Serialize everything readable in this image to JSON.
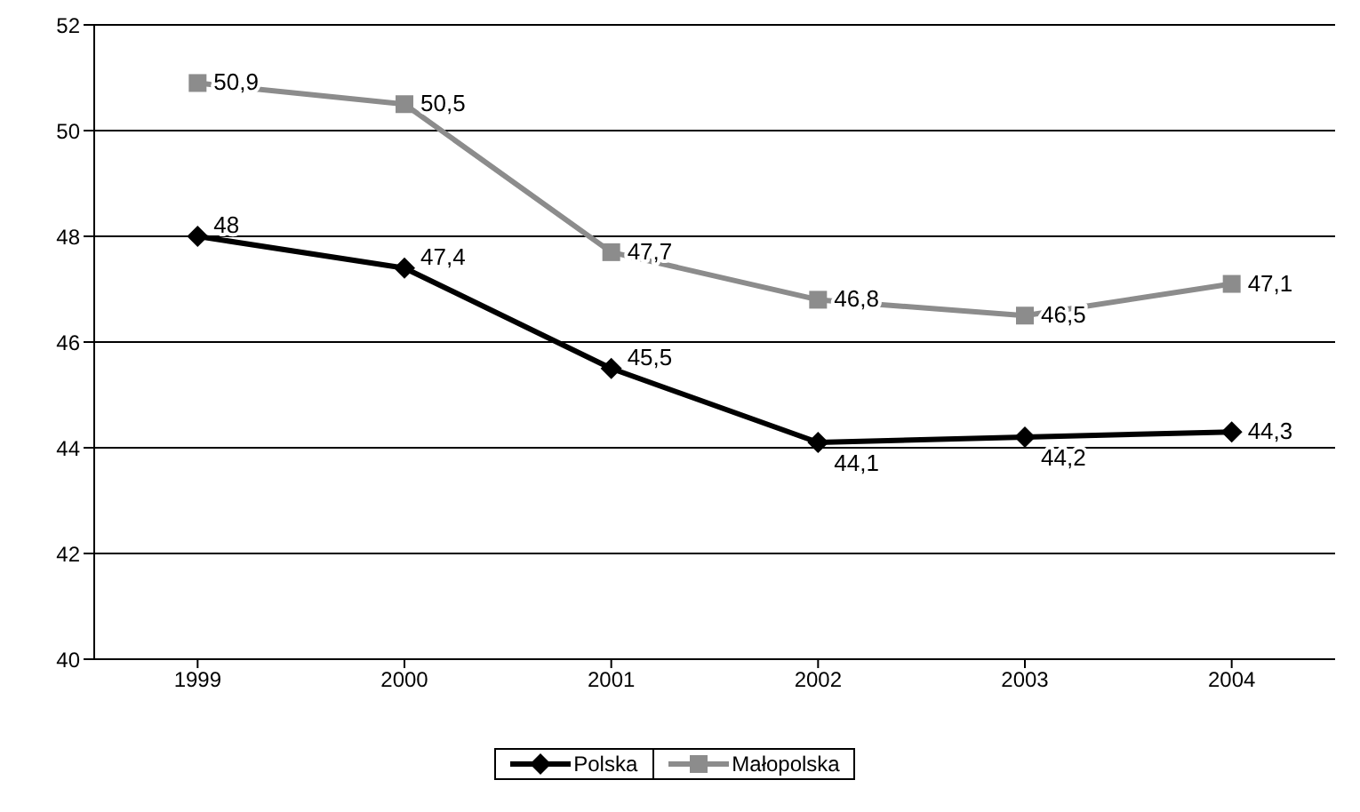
{
  "chart_data": {
    "type": "line",
    "categories": [
      "1999",
      "2000",
      "2001",
      "2002",
      "2003",
      "2004"
    ],
    "series": [
      {
        "name": "Polska",
        "color": "#000000",
        "marker": "diamond",
        "values": [
          48,
          47.4,
          45.5,
          44.1,
          44.2,
          44.3
        ],
        "value_labels": [
          "48",
          "47,4",
          "45,5",
          "44,1",
          "44,2",
          "44,3"
        ]
      },
      {
        "name": "Małopolska",
        "color": "#8c8c8c",
        "marker": "square",
        "values": [
          50.9,
          50.5,
          47.7,
          46.8,
          46.5,
          47.1
        ],
        "value_labels": [
          "50,9",
          "50,5",
          "47,7",
          "46,8",
          "46,5",
          "47,1"
        ]
      }
    ],
    "ylim": [
      40,
      52
    ],
    "yticks": [
      40,
      42,
      44,
      46,
      48,
      50,
      52
    ],
    "grid": "y",
    "legend": "bottom"
  }
}
